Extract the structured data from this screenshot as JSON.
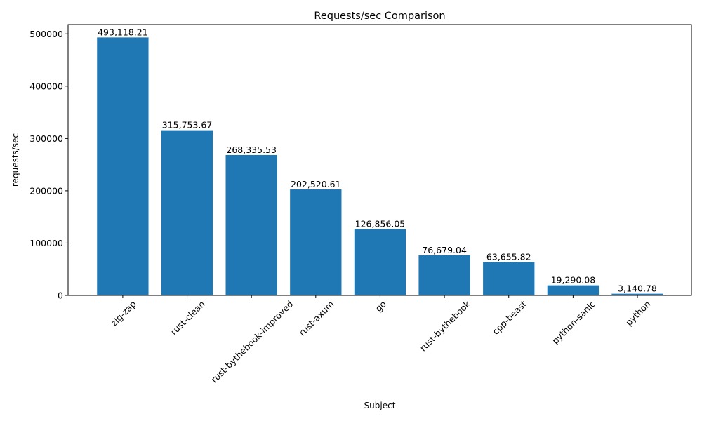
{
  "chart_data": {
    "type": "bar",
    "title": "Requests/sec Comparison",
    "xlabel": "Subject",
    "ylabel": "requests/sec",
    "categories": [
      "zig-zap",
      "rust-clean",
      "rust-bythebook-improved",
      "rust-axum",
      "go",
      "rust-bythebook",
      "cpp-beast",
      "python-sanic",
      "python"
    ],
    "values": [
      493118.21,
      315753.67,
      268335.53,
      202520.61,
      126856.05,
      76679.04,
      63655.82,
      19290.08,
      3140.78
    ],
    "data_labels": [
      "493,118.21",
      "315,753.67",
      "268,335.53",
      "202,520.61",
      "126,856.05",
      "76,679.04",
      "63,655.82",
      "19,290.08",
      "3,140.78"
    ],
    "yticks": [
      0,
      100000,
      200000,
      300000,
      400000,
      500000
    ],
    "ytick_labels": [
      "0",
      "100000",
      "200000",
      "300000",
      "400000",
      "500000"
    ],
    "ylim": [
      0,
      517774
    ],
    "xtick_rotation": 45,
    "grid": false,
    "bar_color": "#1f77b4"
  }
}
